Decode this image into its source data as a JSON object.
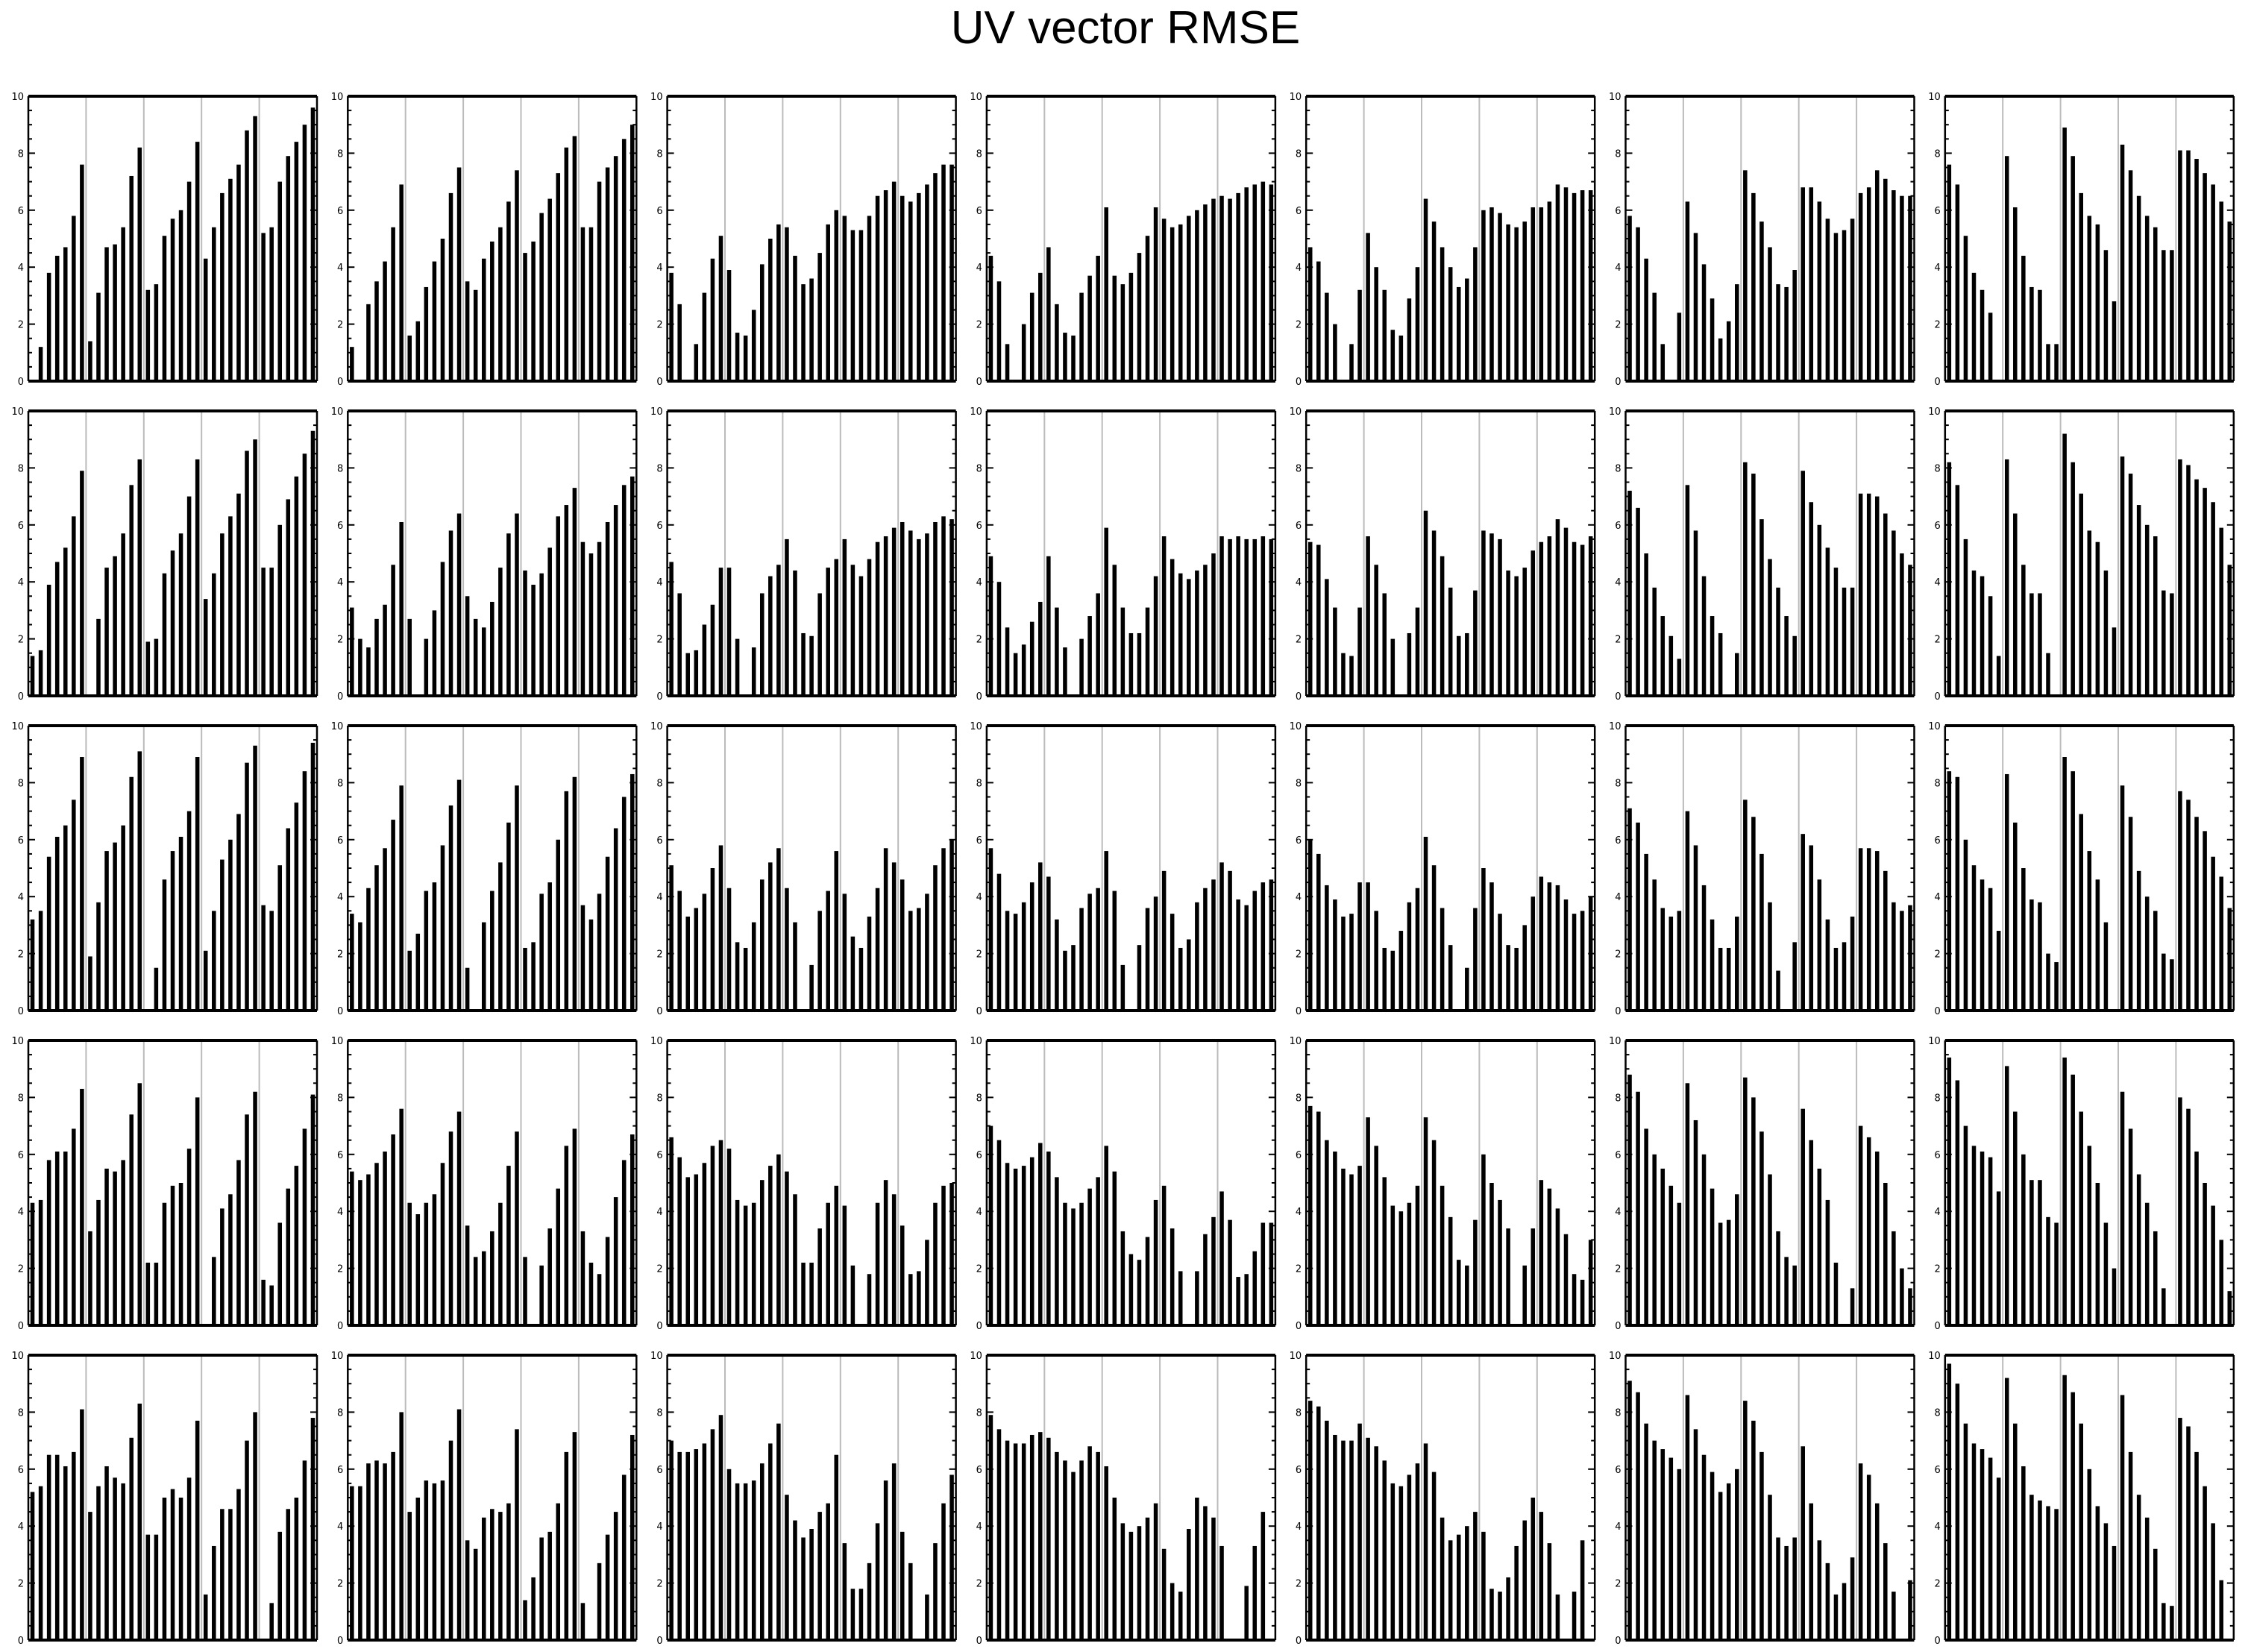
{
  "title": "UV vector RMSE",
  "colors": {
    "bar": "#000000",
    "grid": "#bbbbbb",
    "frame": "#000000",
    "background": "#ffffff"
  },
  "chart_data": {
    "type": "bar",
    "layout": "small-multiples grid of 5 rows x 7 columns",
    "ylim": [
      0,
      10
    ],
    "yticks": [
      "0",
      "2",
      "4",
      "6",
      "8",
      "10"
    ],
    "xgrid": "vertical gridlines dividing each panel into 5 groups",
    "panels": [
      [
        [
          0,
          1.2,
          3.8,
          4.4,
          4.7,
          5.8,
          7.6,
          1.4,
          3.1,
          4.7,
          4.8,
          5.4,
          7.2,
          8.2,
          3.2,
          3.4,
          5.1,
          5.7,
          6.0,
          7.0,
          8.4,
          4.3,
          5.4,
          6.6,
          7.1,
          7.6,
          8.8,
          9.3,
          5.2,
          5.4,
          7.0,
          7.9,
          8.4,
          9.0,
          9.6
        ],
        [
          1.2,
          0,
          2.7,
          3.5,
          4.2,
          5.4,
          6.9,
          1.6,
          2.1,
          3.3,
          4.2,
          5.0,
          6.6,
          7.5,
          3.5,
          3.2,
          4.3,
          4.9,
          5.4,
          6.3,
          7.4,
          4.5,
          4.9,
          5.9,
          6.4,
          7.3,
          8.2,
          8.6,
          5.4,
          5.4,
          7.0,
          7.5,
          7.9,
          8.5,
          9.0
        ],
        [
          3.8,
          2.7,
          0,
          1.3,
          3.1,
          4.3,
          5.1,
          3.9,
          1.7,
          1.6,
          2.5,
          4.1,
          5.0,
          5.5,
          5.4,
          4.4,
          3.4,
          3.6,
          4.5,
          5.5,
          6.0,
          5.8,
          5.3,
          5.3,
          5.8,
          6.5,
          6.7,
          7.0,
          6.5,
          6.3,
          6.6,
          6.9,
          7.3,
          7.6,
          7.6
        ],
        [
          4.4,
          3.5,
          1.3,
          0,
          2.0,
          3.1,
          3.8,
          4.7,
          2.7,
          1.7,
          1.6,
          3.1,
          3.7,
          4.4,
          6.1,
          3.7,
          3.4,
          3.8,
          4.5,
          5.1,
          6.1,
          5.7,
          5.4,
          5.5,
          5.8,
          6.0,
          6.2,
          6.4,
          6.5,
          6.4,
          6.6,
          6.8,
          6.9,
          7.0,
          6.9
        ],
        [
          4.7,
          4.2,
          3.1,
          2.0,
          0,
          1.3,
          3.2,
          5.2,
          4.0,
          3.2,
          1.8,
          1.6,
          2.9,
          4.0,
          6.4,
          5.6,
          4.7,
          4.0,
          3.3,
          3.6,
          4.7,
          6.0,
          6.1,
          5.9,
          5.5,
          5.4,
          5.6,
          6.1,
          6.1,
          6.3,
          6.9,
          6.8,
          6.6,
          6.7,
          6.7
        ],
        [
          5.8,
          5.4,
          4.3,
          3.1,
          1.3,
          0,
          2.4,
          6.3,
          5.2,
          4.1,
          2.9,
          1.5,
          2.1,
          3.4,
          7.4,
          6.6,
          5.6,
          4.7,
          3.4,
          3.3,
          3.9,
          6.8,
          6.8,
          6.3,
          5.7,
          5.2,
          5.3,
          5.7,
          6.6,
          6.8,
          7.4,
          7.1,
          6.7,
          6.5,
          6.5
        ],
        [
          7.6,
          6.9,
          5.1,
          3.8,
          3.2,
          2.4,
          0,
          7.9,
          6.1,
          4.4,
          3.3,
          3.2,
          1.3,
          1.3,
          8.9,
          7.9,
          6.6,
          5.8,
          5.5,
          4.6,
          2.8,
          8.3,
          7.4,
          6.5,
          5.8,
          5.4,
          4.6,
          4.6,
          8.1,
          8.1,
          7.8,
          7.3,
          6.9,
          6.3,
          5.6
        ]
      ],
      [
        [
          1.4,
          1.6,
          3.9,
          4.7,
          5.2,
          6.3,
          7.9,
          0,
          2.7,
          4.5,
          4.9,
          5.7,
          7.4,
          8.3,
          1.9,
          2.0,
          4.3,
          5.1,
          5.7,
          7.0,
          8.3,
          3.4,
          4.3,
          5.7,
          6.3,
          7.1,
          8.6,
          9.0,
          4.5,
          4.5,
          6.0,
          6.9,
          7.7,
          8.5,
          9.3
        ],
        [
          3.1,
          2.0,
          1.7,
          2.7,
          3.2,
          4.6,
          6.1,
          2.7,
          0,
          2.0,
          3.0,
          4.7,
          5.8,
          6.4,
          3.5,
          2.7,
          2.4,
          3.3,
          4.5,
          5.7,
          6.4,
          4.4,
          3.9,
          4.3,
          5.2,
          6.3,
          6.7,
          7.3,
          5.4,
          5.0,
          5.4,
          6.1,
          6.7,
          7.4,
          7.7
        ],
        [
          4.7,
          3.6,
          1.5,
          1.6,
          2.5,
          3.2,
          4.5,
          4.5,
          2.0,
          0,
          1.7,
          3.6,
          4.2,
          4.6,
          5.5,
          4.4,
          2.2,
          2.1,
          3.6,
          4.5,
          4.8,
          5.5,
          4.6,
          4.2,
          4.8,
          5.4,
          5.6,
          5.9,
          6.1,
          5.8,
          5.5,
          5.7,
          6.1,
          6.3,
          6.2
        ],
        [
          4.9,
          4.0,
          2.4,
          1.5,
          1.8,
          2.6,
          3.3,
          4.9,
          3.1,
          1.7,
          0,
          2.0,
          2.8,
          3.6,
          5.9,
          4.6,
          3.1,
          2.2,
          2.2,
          3.1,
          4.2,
          5.6,
          4.8,
          4.3,
          4.1,
          4.4,
          4.6,
          5.0,
          5.6,
          5.5,
          5.6,
          5.5,
          5.5,
          5.6,
          5.5
        ],
        [
          5.4,
          5.3,
          4.1,
          3.1,
          1.5,
          1.4,
          3.1,
          5.6,
          4.6,
          3.6,
          2.0,
          0,
          2.2,
          3.1,
          6.5,
          5.8,
          4.9,
          3.8,
          2.1,
          2.2,
          3.7,
          5.8,
          5.7,
          5.5,
          4.4,
          4.2,
          4.5,
          5.1,
          5.4,
          5.6,
          6.2,
          5.9,
          5.4,
          5.3,
          5.6
        ],
        [
          7.2,
          6.6,
          5.0,
          3.8,
          2.8,
          2.1,
          1.3,
          7.4,
          5.8,
          4.2,
          2.8,
          2.2,
          0,
          1.5,
          8.2,
          7.8,
          6.2,
          4.8,
          3.8,
          2.8,
          2.1,
          7.9,
          6.8,
          6.0,
          5.2,
          4.5,
          3.8,
          3.8,
          7.1,
          7.1,
          7.0,
          6.4,
          5.8,
          5.0,
          4.6
        ],
        [
          8.2,
          7.4,
          5.5,
          4.4,
          4.2,
          3.5,
          1.4,
          8.3,
          6.4,
          4.6,
          3.6,
          3.6,
          1.5,
          0,
          9.2,
          8.2,
          7.1,
          5.8,
          5.4,
          4.4,
          2.4,
          8.4,
          7.8,
          6.7,
          6.0,
          5.6,
          3.7,
          3.6,
          8.3,
          8.1,
          7.6,
          7.3,
          6.8,
          5.9,
          4.6
        ]
      ],
      [
        [
          3.2,
          3.5,
          5.4,
          6.1,
          6.5,
          7.4,
          8.9,
          1.9,
          3.8,
          5.6,
          5.9,
          6.5,
          8.2,
          9.1,
          0,
          1.5,
          4.6,
          5.6,
          6.1,
          7.0,
          8.9,
          2.1,
          3.5,
          5.3,
          6.0,
          6.9,
          8.7,
          9.3,
          3.7,
          3.5,
          5.1,
          6.4,
          7.3,
          8.4,
          9.4
        ],
        [
          3.4,
          3.1,
          4.3,
          5.1,
          5.7,
          6.7,
          7.9,
          2.1,
          2.7,
          4.2,
          4.5,
          5.8,
          7.2,
          8.1,
          1.5,
          0,
          3.1,
          4.2,
          5.2,
          6.6,
          7.9,
          2.2,
          2.4,
          4.1,
          4.5,
          6.0,
          7.7,
          8.2,
          3.7,
          3.2,
          4.1,
          5.4,
          6.4,
          7.5,
          8.3
        ],
        [
          5.1,
          4.2,
          3.3,
          3.6,
          4.1,
          5.0,
          5.8,
          4.3,
          2.4,
          2.2,
          3.1,
          4.6,
          5.2,
          5.7,
          4.3,
          3.1,
          0,
          1.6,
          3.5,
          4.2,
          5.6,
          4.1,
          2.6,
          2.2,
          3.3,
          4.3,
          5.7,
          5.2,
          4.6,
          3.5,
          3.6,
          4.1,
          5.1,
          5.7,
          6.0
        ],
        [
          5.7,
          4.8,
          3.5,
          3.4,
          3.8,
          4.5,
          5.2,
          4.7,
          3.2,
          2.1,
          2.3,
          3.6,
          4.1,
          4.3,
          5.6,
          4.2,
          1.6,
          0,
          2.3,
          3.6,
          4.0,
          4.9,
          3.4,
          2.2,
          2.5,
          3.8,
          4.3,
          4.6,
          5.2,
          4.9,
          3.9,
          3.7,
          4.2,
          4.5,
          4.6
        ],
        [
          6.0,
          5.5,
          4.4,
          3.9,
          3.3,
          3.4,
          4.5,
          4.5,
          3.5,
          2.2,
          2.1,
          2.8,
          3.8,
          4.3,
          6.1,
          5.1,
          3.6,
          2.3,
          0,
          1.5,
          3.6,
          5.0,
          4.5,
          3.4,
          2.3,
          2.2,
          3.0,
          4.0,
          4.7,
          4.5,
          4.4,
          3.9,
          3.4,
          3.5,
          4.0
        ],
        [
          7.1,
          6.6,
          5.5,
          4.6,
          3.6,
          3.3,
          3.5,
          7.0,
          5.8,
          4.4,
          3.2,
          2.2,
          2.2,
          3.3,
          7.4,
          6.8,
          5.5,
          3.8,
          1.4,
          0,
          2.4,
          6.2,
          5.8,
          4.6,
          3.2,
          2.2,
          2.4,
          3.3,
          5.7,
          5.7,
          5.6,
          4.9,
          3.8,
          3.5,
          3.7
        ],
        [
          8.4,
          8.2,
          6.0,
          5.1,
          4.6,
          4.3,
          2.8,
          8.3,
          6.6,
          5.0,
          3.9,
          3.8,
          2.0,
          1.7,
          8.9,
          8.4,
          6.9,
          5.6,
          4.6,
          3.1,
          0,
          7.9,
          6.8,
          4.9,
          4.0,
          3.5,
          2.0,
          1.8,
          7.7,
          7.4,
          6.8,
          6.3,
          5.4,
          4.7,
          3.6
        ]
      ],
      [
        [
          4.3,
          4.4,
          5.8,
          6.1,
          6.1,
          6.9,
          8.3,
          3.3,
          4.4,
          5.5,
          5.4,
          5.8,
          7.4,
          8.5,
          2.2,
          2.2,
          4.3,
          4.9,
          5.0,
          6.2,
          8.0,
          0,
          2.4,
          4.1,
          4.6,
          5.8,
          7.4,
          8.2,
          1.6,
          1.4,
          3.6,
          4.8,
          5.6,
          6.9,
          8.1
        ],
        [
          5.4,
          5.1,
          5.3,
          5.7,
          6.1,
          6.7,
          7.6,
          4.3,
          3.9,
          4.3,
          4.6,
          5.7,
          6.8,
          7.5,
          3.5,
          2.4,
          2.6,
          3.3,
          4.3,
          5.6,
          6.8,
          2.4,
          0,
          2.1,
          3.4,
          4.8,
          6.3,
          6.9,
          3.3,
          2.2,
          1.8,
          3.1,
          4.5,
          5.8,
          6.7
        ],
        [
          6.6,
          5.9,
          5.2,
          5.3,
          5.7,
          6.3,
          6.5,
          6.2,
          4.4,
          4.2,
          4.3,
          5.1,
          5.6,
          6.0,
          5.4,
          4.6,
          2.2,
          2.2,
          3.4,
          4.3,
          4.9,
          4.2,
          2.1,
          0,
          1.8,
          4.3,
          5.1,
          4.6,
          3.5,
          1.8,
          1.9,
          3.0,
          4.3,
          4.9,
          5.0
        ],
        [
          7.0,
          6.5,
          5.7,
          5.5,
          5.6,
          5.9,
          6.4,
          6.1,
          5.2,
          4.3,
          4.1,
          4.3,
          4.8,
          5.2,
          6.3,
          5.4,
          3.3,
          2.5,
          2.3,
          3.1,
          4.4,
          4.9,
          3.4,
          1.9,
          0,
          1.9,
          3.2,
          3.8,
          4.7,
          3.7,
          1.7,
          1.8,
          2.6,
          3.6,
          3.6
        ],
        [
          7.7,
          7.5,
          6.5,
          6.1,
          5.5,
          5.3,
          5.6,
          7.3,
          6.3,
          5.2,
          4.2,
          4.0,
          4.3,
          4.9,
          7.3,
          6.5,
          4.9,
          3.8,
          2.3,
          2.1,
          3.7,
          6.0,
          5.0,
          4.4,
          3.4,
          0,
          2.1,
          3.4,
          5.1,
          4.8,
          4.1,
          3.2,
          1.8,
          1.6,
          3.0
        ],
        [
          8.8,
          8.2,
          6.9,
          6.0,
          5.5,
          4.9,
          4.3,
          8.5,
          7.2,
          6.0,
          4.8,
          3.6,
          3.7,
          4.6,
          8.7,
          8.0,
          6.8,
          5.3,
          3.3,
          2.4,
          2.1,
          7.6,
          6.5,
          5.5,
          4.4,
          2.2,
          0,
          1.3,
          7.0,
          6.6,
          6.1,
          5.0,
          3.3,
          2.0,
          1.3
        ],
        [
          9.4,
          8.6,
          7.0,
          6.3,
          6.1,
          5.9,
          4.7,
          9.1,
          7.5,
          6.0,
          5.1,
          5.1,
          3.8,
          3.6,
          9.4,
          8.8,
          7.5,
          6.3,
          5.0,
          3.6,
          2.0,
          8.2,
          6.9,
          5.3,
          4.3,
          3.3,
          1.3,
          0,
          8.0,
          7.6,
          6.1,
          5.0,
          4.2,
          3.0,
          1.2
        ]
      ],
      [
        [
          5.2,
          5.4,
          6.5,
          6.5,
          6.1,
          6.6,
          8.1,
          4.5,
          5.4,
          6.1,
          5.7,
          5.5,
          7.1,
          8.3,
          3.7,
          3.7,
          5.0,
          5.3,
          5.0,
          5.7,
          7.7,
          1.6,
          3.3,
          4.6,
          4.6,
          5.3,
          7.0,
          8.0,
          0,
          1.3,
          3.8,
          4.6,
          5.0,
          6.3,
          7.8
        ],
        [
          5.4,
          5.4,
          6.2,
          6.3,
          6.2,
          6.6,
          8.0,
          4.5,
          5.0,
          5.6,
          5.5,
          5.6,
          7.0,
          8.1,
          3.5,
          3.2,
          4.3,
          4.6,
          4.5,
          4.8,
          7.4,
          1.4,
          2.2,
          3.6,
          3.8,
          4.8,
          6.6,
          7.3,
          1.3,
          0,
          2.7,
          3.7,
          4.5,
          5.8,
          7.2
        ],
        [
          7.0,
          6.6,
          6.6,
          6.7,
          6.9,
          7.4,
          7.9,
          6.0,
          5.5,
          5.5,
          5.6,
          6.2,
          6.9,
          7.6,
          5.1,
          4.2,
          3.6,
          3.9,
          4.5,
          4.8,
          6.5,
          3.4,
          1.8,
          1.8,
          2.7,
          4.1,
          5.6,
          6.2,
          3.8,
          2.7,
          0,
          1.6,
          3.4,
          4.8,
          5.8
        ],
        [
          7.9,
          7.4,
          7.0,
          6.9,
          6.9,
          7.2,
          7.3,
          7.1,
          6.6,
          6.3,
          5.9,
          6.3,
          6.8,
          6.6,
          6.1,
          5.0,
          4.1,
          3.8,
          4.0,
          4.3,
          4.8,
          3.2,
          2.0,
          1.7,
          3.9,
          5.0,
          4.7,
          4.3,
          3.3,
          0,
          0,
          1.9,
          3.3,
          4.5,
          0
        ],
        [
          8.4,
          8.2,
          7.7,
          7.2,
          7.0,
          7.0,
          7.6,
          7.1,
          6.8,
          6.3,
          5.5,
          5.4,
          5.8,
          6.2,
          6.9,
          5.9,
          4.3,
          3.5,
          3.7,
          4.0,
          4.5,
          3.8,
          1.8,
          1.7,
          2.2,
          3.3,
          4.2,
          5.0,
          4.5,
          3.4,
          1.6,
          0,
          1.7,
          3.5,
          0
        ],
        [
          9.1,
          8.7,
          7.6,
          7.0,
          6.7,
          6.4,
          6.0,
          8.6,
          7.4,
          6.5,
          5.9,
          5.2,
          5.5,
          6.0,
          8.4,
          7.7,
          6.6,
          5.1,
          3.6,
          3.3,
          3.6,
          6.8,
          4.8,
          3.5,
          2.7,
          1.6,
          2.0,
          2.9,
          6.2,
          5.8,
          4.8,
          3.4,
          1.7,
          0,
          2.1
        ],
        [
          9.7,
          9.0,
          7.6,
          6.9,
          6.7,
          6.4,
          5.7,
          9.2,
          7.6,
          6.1,
          5.1,
          4.9,
          4.7,
          4.6,
          9.3,
          8.7,
          7.6,
          6.0,
          4.7,
          4.1,
          3.3,
          8.6,
          6.6,
          5.1,
          4.3,
          3.2,
          1.3,
          1.2,
          7.8,
          7.5,
          6.6,
          5.4,
          4.1,
          2.1,
          0
        ]
      ]
    ]
  }
}
